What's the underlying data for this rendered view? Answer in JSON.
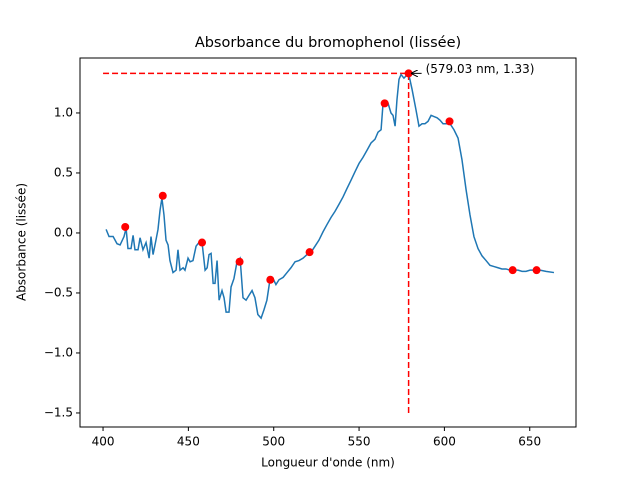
{
  "chart_data": {
    "type": "line",
    "title": "Absorbance du bromophenol (lissée)",
    "xlabel": "Longueur d'onde (nm)",
    "ylabel": "Absorbance (lissée)",
    "color": "#1f77b4",
    "x": [
      401.8,
      403.5,
      405.9,
      408.2,
      410,
      412.3,
      413.5,
      414.6,
      416.4,
      417.6,
      418.7,
      420.5,
      421.7,
      423.4,
      425.2,
      427,
      428.1,
      429.3,
      431,
      432.2,
      433.4,
      434.5,
      435.7,
      436.9,
      438.1,
      439.2,
      441,
      442.8,
      443.9,
      445.1,
      446.9,
      448,
      449.8,
      451,
      452.7,
      454.5,
      456.2,
      458,
      459.8,
      461,
      462.1,
      463.3,
      464.5,
      465.6,
      466.8,
      468,
      469.7,
      470.9,
      472.1,
      473.8,
      475,
      476.7,
      478.5,
      480.3,
      482,
      483.8,
      485.5,
      487.3,
      489,
      490.7,
      492.6,
      494.3,
      496,
      497.8,
      499.6,
      501.3,
      503.1,
      505.5,
      507.8,
      510.1,
      512.5,
      514.8,
      517.2,
      519.5,
      521.9,
      524.2,
      526.5,
      528.9,
      531.2,
      533.6,
      535.9,
      538.3,
      540.6,
      542.9,
      545.3,
      547.6,
      550,
      552.3,
      554.7,
      557,
      559.3,
      561.1,
      562.9,
      564,
      565.2,
      567,
      568.7,
      569.9,
      571.1,
      572.2,
      573.4,
      574.6,
      576.3,
      579,
      581,
      583.3,
      585.1,
      586.9,
      588.6,
      590.4,
      592.2,
      593.9,
      595.7,
      597.4,
      599.2,
      600.9,
      603.3,
      605.6,
      608,
      610.3,
      612.7,
      615,
      617.3,
      619.7,
      622,
      624.4,
      626.7,
      629.1,
      631.4,
      633.7,
      636.1,
      638.4,
      640.8,
      643.1,
      645.5,
      647.8,
      650.2,
      652.5,
      656,
      659.5,
      664.2
    ],
    "values": [
      0.03,
      -0.03,
      -0.03,
      -0.09,
      -0.1,
      -0.03,
      0.04,
      -0.13,
      -0.13,
      -0.02,
      -0.14,
      -0.14,
      -0.04,
      -0.14,
      -0.08,
      -0.21,
      -0.03,
      -0.18,
      -0.06,
      0.03,
      0.19,
      0.29,
      0.15,
      -0.06,
      -0.1,
      -0.23,
      -0.33,
      -0.31,
      -0.14,
      -0.31,
      -0.29,
      -0.31,
      -0.21,
      -0.24,
      -0.23,
      -0.11,
      -0.08,
      -0.08,
      -0.31,
      -0.29,
      -0.18,
      -0.17,
      -0.42,
      -0.42,
      -0.23,
      -0.56,
      -0.48,
      -0.54,
      -0.66,
      -0.66,
      -0.45,
      -0.38,
      -0.24,
      -0.21,
      -0.54,
      -0.56,
      -0.52,
      -0.48,
      -0.54,
      -0.68,
      -0.71,
      -0.64,
      -0.56,
      -0.39,
      -0.38,
      -0.43,
      -0.39,
      -0.37,
      -0.33,
      -0.29,
      -0.24,
      -0.23,
      -0.21,
      -0.18,
      -0.16,
      -0.11,
      -0.06,
      0.01,
      0.07,
      0.13,
      0.18,
      0.24,
      0.3,
      0.37,
      0.44,
      0.51,
      0.58,
      0.63,
      0.69,
      0.75,
      0.78,
      0.84,
      0.86,
      1.07,
      1.08,
      1.08,
      1.0,
      0.98,
      0.89,
      1.11,
      1.28,
      1.32,
      1.29,
      1.33,
      1.2,
      1.03,
      0.89,
      0.91,
      0.91,
      0.93,
      0.98,
      0.97,
      0.96,
      0.94,
      0.91,
      0.91,
      0.91,
      0.86,
      0.79,
      0.61,
      0.36,
      0.15,
      -0.03,
      -0.13,
      -0.19,
      -0.23,
      -0.27,
      -0.28,
      -0.29,
      -0.3,
      -0.3,
      -0.31,
      -0.31,
      -0.31,
      -0.32,
      -0.32,
      -0.31,
      -0.31,
      -0.31,
      -0.32,
      -0.33
    ],
    "markers": {
      "color": "#ff0000",
      "x": [
        413,
        435,
        458,
        480,
        498,
        521,
        565,
        579.03,
        603,
        640,
        654
      ],
      "values": [
        0.05,
        0.31,
        -0.08,
        -0.24,
        -0.39,
        -0.16,
        1.08,
        1.33,
        0.93,
        -0.31,
        -0.31
      ]
    },
    "hline": {
      "y": 1.33,
      "xmin": 400,
      "xmax": 579.03,
      "color": "#ff0000"
    },
    "vline": {
      "x": 579.03,
      "ymin": -1.5,
      "ymax": 1.33,
      "color": "#ff0000"
    },
    "annotation": {
      "text": "(579.03 nm, 1.33)",
      "x": 579.03,
      "y": 1.33,
      "color": "#ff0000"
    },
    "xlim": [
      386.5,
      677.1
    ],
    "ylim": [
      -1.617,
      1.458
    ],
    "xticks": [
      400,
      450,
      500,
      550,
      600,
      650
    ],
    "yticks": [
      {
        "value": -1.5,
        "label": "−1.5"
      },
      {
        "value": -1,
        "label": "−1.0"
      },
      {
        "value": -0.5,
        "label": "−0.5"
      },
      {
        "value": 0,
        "label": "0.0"
      },
      0.5,
      {
        "value": 1,
        "label": "1.0"
      }
    ]
  }
}
